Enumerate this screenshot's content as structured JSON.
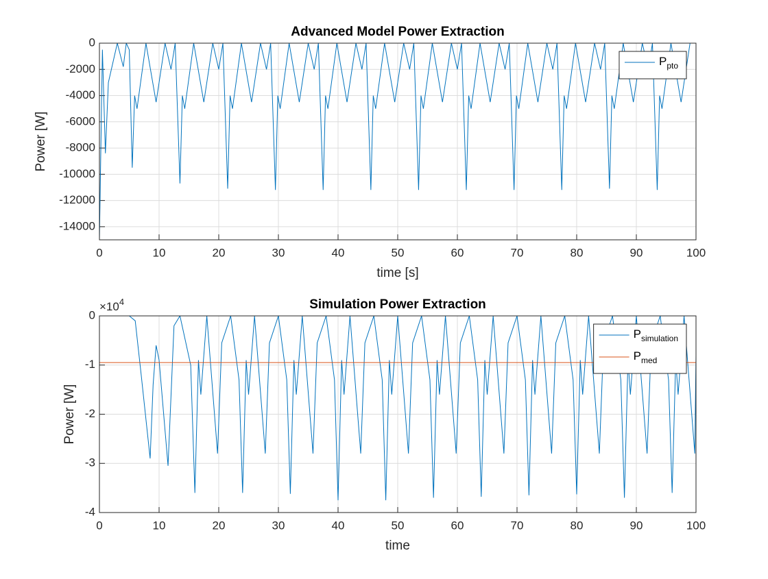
{
  "chart_data": [
    {
      "type": "line",
      "title": "Advanced Model Power Extraction",
      "xlabel": "time [s]",
      "ylabel": "Power [W]",
      "xlim": [
        0,
        100
      ],
      "xticks": [
        0,
        10,
        20,
        30,
        40,
        50,
        60,
        70,
        80,
        90,
        100
      ],
      "ylim": [
        -15000,
        0
      ],
      "yticks": [
        -14000,
        -12000,
        -10000,
        -8000,
        -6000,
        -4000,
        -2000,
        0
      ],
      "grid": true,
      "legend_position": "northeast",
      "x": [
        0,
        0.5,
        1,
        1.5,
        2,
        3,
        4,
        4.5,
        5,
        5.5,
        5.9,
        6.3,
        7.8,
        9.5,
        11,
        12,
        12.7,
        13.5,
        13.9,
        14.3,
        15.8,
        17.5,
        19,
        20,
        20.7,
        21.5,
        21.9,
        22.3,
        23.8,
        25.5,
        27,
        28,
        28.7,
        29.5,
        29.9,
        30.3,
        31.8,
        33.5,
        35,
        36,
        36.7,
        37.5,
        37.9,
        38.3,
        39.8,
        41.5,
        43,
        44,
        44.7,
        45.5,
        45.9,
        46.3,
        47.8,
        49.5,
        51,
        52,
        52.7,
        53.5,
        53.9,
        54.3,
        55.8,
        57.5,
        59,
        60,
        60.7,
        61.5,
        61.9,
        62.3,
        63.8,
        65.5,
        67,
        68,
        68.7,
        69.5,
        69.9,
        70.3,
        71.8,
        73.5,
        75,
        76,
        76.7,
        77.5,
        77.9,
        78.3,
        79.8,
        81.5,
        83,
        84,
        84.7,
        85.5,
        85.9,
        86.3,
        87.8,
        89.5,
        91,
        92,
        92.7,
        93.5,
        93.9,
        94.3,
        95.8,
        97.5,
        99,
        100
      ],
      "series": [
        {
          "name": "P",
          "subscript": "pto",
          "color": "#0072bd",
          "values": [
            -15000,
            -500,
            -8400,
            -3000,
            -2000,
            0,
            -1800,
            0,
            -500,
            -9500,
            -4000,
            -5000,
            0,
            -4500,
            0,
            -2000,
            0,
            -10700,
            -4000,
            -5000,
            0,
            -4500,
            0,
            -2000,
            0,
            -11100,
            -4000,
            -5000,
            0,
            -4500,
            0,
            -2000,
            0,
            -11200,
            -4000,
            -5000,
            0,
            -4500,
            0,
            -2000,
            0,
            -11200,
            -4000,
            -5000,
            0,
            -4500,
            0,
            -2000,
            0,
            -11200,
            -4000,
            -5000,
            0,
            -4500,
            0,
            -2000,
            0,
            -11200,
            -4000,
            -5000,
            0,
            -4500,
            0,
            -2000,
            0,
            -11200,
            -4000,
            -5000,
            0,
            -4500,
            0,
            -2000,
            0,
            -11200,
            -4000,
            -5000,
            0,
            -4500,
            0,
            -2000,
            0,
            -11200,
            -4000,
            -5000,
            0,
            -4500,
            0,
            -2000,
            0,
            -11100,
            -4000,
            -5000,
            0,
            -4500,
            0,
            -2000,
            0,
            -11200,
            -4000,
            -5000,
            0,
            -4500,
            0,
            0
          ]
        }
      ]
    },
    {
      "type": "line",
      "title": "Simulation Power Extraction",
      "xlabel": "time",
      "ylabel": "Power [W]",
      "xlim": [
        0,
        100
      ],
      "xticks": [
        0,
        10,
        20,
        30,
        40,
        50,
        60,
        70,
        80,
        90,
        100
      ],
      "ylim": [
        -40000,
        0
      ],
      "yticks": [
        {
          "value": -40000,
          "label": "-4"
        },
        {
          "value": -30000,
          "label": "-3"
        },
        {
          "value": -20000,
          "label": "-2"
        },
        {
          "value": -10000,
          "label": "-1"
        },
        0
      ],
      "y_multiplier": {
        "base": "×10",
        "exponent": "4"
      },
      "grid": true,
      "legend_position": "northeast",
      "x": [
        0,
        5,
        6,
        7,
        8.5,
        9,
        9.5,
        10,
        11.5,
        12.5,
        13.5,
        15.3,
        16,
        16.6,
        17,
        18,
        19.8,
        20.5,
        22,
        23.4,
        24,
        24.6,
        25,
        26,
        27.8,
        28.5,
        30,
        31.4,
        32,
        32.6,
        33,
        34,
        35.8,
        36.5,
        38,
        39.4,
        40,
        40.6,
        41,
        42,
        43.8,
        44.5,
        46,
        47.4,
        48,
        48.6,
        49,
        50,
        51.8,
        52.5,
        54,
        55.4,
        56,
        56.6,
        57,
        58,
        59.8,
        60.5,
        62,
        63.4,
        64,
        64.6,
        65,
        66,
        67.8,
        68.5,
        70,
        71.4,
        72,
        72.6,
        73,
        74,
        75.8,
        76.5,
        78,
        79.4,
        80,
        80.6,
        81,
        82,
        83.8,
        84.5,
        86,
        87.4,
        88,
        88.6,
        89,
        90,
        91.8,
        92.5,
        94,
        95.4,
        96,
        96.6,
        97,
        98,
        99.8,
        100
      ],
      "series": [
        {
          "name": "P",
          "subscript": "simulation",
          "color": "#0072bd",
          "values": [
            0,
            0,
            -1000,
            -12000,
            -29000,
            -14000,
            -6000,
            -9000,
            -30500,
            -2000,
            0,
            -10000,
            -36000,
            -9000,
            -16000,
            0,
            -28000,
            -5500,
            0,
            -13000,
            -36000,
            -9000,
            -16000,
            0,
            -28000,
            -5500,
            0,
            -13000,
            -36200,
            -9000,
            -16000,
            0,
            -28000,
            -5500,
            0,
            -13000,
            -37500,
            -9000,
            -16000,
            0,
            -28000,
            -5500,
            0,
            -13000,
            -37500,
            -9000,
            -16000,
            0,
            -28000,
            -5500,
            0,
            -13000,
            -37000,
            -9000,
            -16000,
            0,
            -28000,
            -5500,
            0,
            -13000,
            -36800,
            -9000,
            -16000,
            0,
            -28000,
            -5500,
            0,
            -13000,
            -36500,
            -9000,
            -16000,
            0,
            -28000,
            -5500,
            0,
            -13000,
            -36300,
            -9000,
            -16000,
            0,
            -28000,
            -5500,
            0,
            -13000,
            -37000,
            -9000,
            -16000,
            0,
            -28000,
            -5500,
            0,
            -13000,
            -36000,
            -9000,
            -16000,
            0,
            -28000,
            -8000
          ]
        },
        {
          "name": "P",
          "subscript": "med",
          "color": "#d95319",
          "x": [
            0,
            100
          ],
          "values": [
            -9500,
            -9500
          ]
        }
      ]
    }
  ]
}
